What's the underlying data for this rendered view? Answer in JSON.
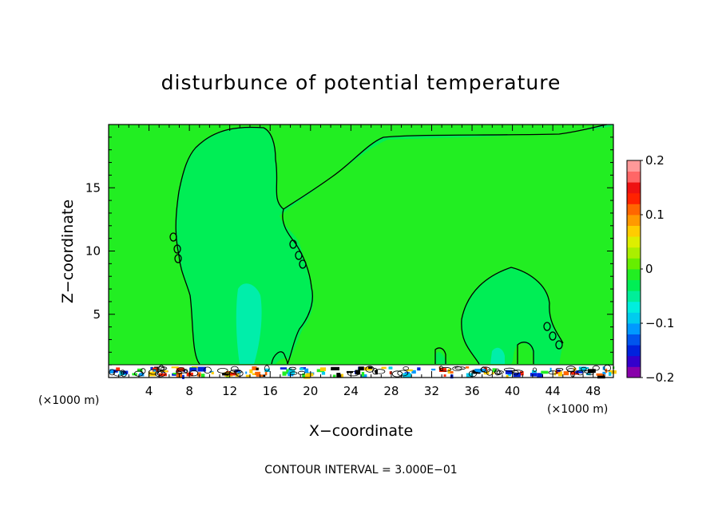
{
  "chart_data": {
    "type": "heatmap",
    "title": "disturbunce of potential temperature",
    "xlabel": "X−coordinate",
    "ylabel": "Z−coordinate",
    "x_unit": "(×1000 m)",
    "footer": "CONTOUR INTERVAL = 3.000E−01",
    "xlim": [
      0,
      50
    ],
    "ylim": [
      0,
      20
    ],
    "x_ticks": [
      4,
      8,
      12,
      16,
      20,
      24,
      28,
      32,
      36,
      40,
      44,
      48
    ],
    "x_tick_labels": [
      "4",
      "8",
      "12",
      "16",
      "20",
      "24",
      "28",
      "32",
      "36",
      "40",
      "44",
      "48"
    ],
    "y_ticks": [
      5,
      10,
      15
    ],
    "y_tick_labels": [
      "5",
      "10",
      "15"
    ],
    "colorbar": {
      "range": [
        -0.2,
        0.2
      ],
      "tick_values": [
        0.2,
        0.1,
        0,
        -0.1,
        -0.2
      ],
      "tick_labels": [
        "0.2",
        "0.1",
        "0",
        "−0.1",
        "−0.2"
      ],
      "colors": [
        "#8800aa",
        "#3300cc",
        "#0022dd",
        "#0055ee",
        "#0099ff",
        "#00ccee",
        "#00eedd",
        "#00ee99",
        "#00ee55",
        "#22ee22",
        "#66ee00",
        "#aaee00",
        "#ddee00",
        "#ffcc00",
        "#ff9900",
        "#ff6600",
        "#ff2200",
        "#ee1111",
        "#ff6666",
        "#ff9999"
      ]
    },
    "field_background": "#22ee22",
    "negative_region_color": "#00ee55",
    "minimum_region_color": "#00eeaa"
  }
}
